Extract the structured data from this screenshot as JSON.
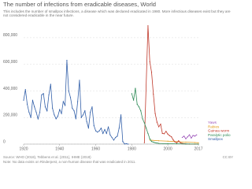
{
  "chart_data": {
    "type": "line",
    "title": "The number of infections from eradicable diseases, World",
    "subtitle": "This includes the number of smallpox infections, a disease which was declared eradicated in 1980. More infectious diseases exist but they are not considered eradicable in the near future.",
    "source": "Source: WHO (2018), Tebbens et al. (2011), IHME (2018)",
    "note": "Note: No data exists on Rinderpest, a non-human disease that was eradicated in 2011.",
    "license": "CC BY",
    "xlim": [
      1920,
      2017
    ],
    "xticks": [
      1920,
      1940,
      1960,
      1980,
      2000,
      2017
    ],
    "ylim": [
      0,
      900000
    ],
    "yticks": [
      0,
      {
        "value": 200000,
        "label": "200,000"
      },
      {
        "value": 400000,
        "label": "400,000"
      },
      {
        "value": 600000,
        "label": "600,000"
      },
      {
        "value": 800000,
        "label": "800,000"
      }
    ],
    "grid": true,
    "series": [
      {
        "name": "Yaws",
        "color": "#9a4fb8",
        "x": [
          2008,
          2009,
          2010,
          2011,
          2012,
          2013,
          2014,
          2015,
          2016
        ],
        "values": [
          50000,
          60000,
          40000,
          55000,
          70000,
          45000,
          65000,
          60000,
          70000
        ]
      },
      {
        "name": "Rabies",
        "color": "#e39b1c",
        "x": [
          1990,
          1995,
          2000,
          2005,
          2010,
          2015,
          2017
        ],
        "values": [
          30000,
          25000,
          22000,
          18000,
          15000,
          12000,
          10000
        ]
      },
      {
        "name": "Guinea worm",
        "color": "#c0392b",
        "x": [
          1987,
          1989,
          1990,
          1991,
          1992,
          1993,
          1994,
          1995,
          1996,
          1997,
          1998,
          1999,
          2000,
          2001,
          2002,
          2003,
          2004,
          2005,
          2006,
          2007,
          2008,
          2010,
          2012,
          2015,
          2017
        ],
        "values": [
          10000,
          890000,
          620000,
          540000,
          375000,
          230000,
          165000,
          130000,
          150000,
          80000,
          78000,
          96000,
          75000,
          63000,
          55000,
          32000,
          16000,
          10000,
          25000,
          10000,
          5000,
          1800,
          542,
          22,
          30
        ]
      },
      {
        "name": "Paralytic polio",
        "color": "#2e8b57",
        "x": [
          1980,
          1981,
          1982,
          1983,
          1984,
          1985,
          1986,
          1987,
          1988,
          1989,
          1990,
          1991,
          1992,
          1993,
          1994,
          1995,
          2000,
          2005,
          2010,
          2017
        ],
        "values": [
          380000,
          330000,
          420000,
          300000,
          280000,
          250000,
          190000,
          160000,
          120000,
          80000,
          40000,
          20000,
          15000,
          10000,
          8000,
          5000,
          3000,
          2000,
          1000,
          100
        ]
      },
      {
        "name": "Smallpox",
        "color": "#3360a9",
        "x": [
          1920,
          1921,
          1922,
          1923,
          1924,
          1925,
          1926,
          1927,
          1928,
          1929,
          1930,
          1931,
          1932,
          1933,
          1934,
          1935,
          1936,
          1937,
          1938,
          1939,
          1940,
          1941,
          1942,
          1943,
          1944,
          1945,
          1946,
          1947,
          1948,
          1949,
          1950,
          1951,
          1952,
          1953,
          1954,
          1955,
          1956,
          1957,
          1958,
          1959,
          1960,
          1961,
          1962,
          1963,
          1964,
          1965,
          1966,
          1967,
          1968,
          1969,
          1970,
          1971,
          1972,
          1973,
          1974,
          1975,
          1976,
          1977,
          1978
        ],
        "values": [
          330000,
          410000,
          300000,
          240000,
          200000,
          330000,
          280000,
          240000,
          190000,
          240000,
          370000,
          380000,
          280000,
          250000,
          370000,
          450000,
          270000,
          220000,
          190000,
          210000,
          260000,
          230000,
          320000,
          290000,
          630000,
          400000,
          350000,
          270000,
          250000,
          190000,
          320000,
          480000,
          200000,
          220000,
          250000,
          170000,
          120000,
          240000,
          280000,
          140000,
          100000,
          90000,
          100000,
          120000,
          80000,
          110000,
          80000,
          130000,
          70000,
          50000,
          30000,
          50000,
          60000,
          120000,
          220000,
          20000,
          1000,
          3000,
          0
        ]
      }
    ]
  }
}
